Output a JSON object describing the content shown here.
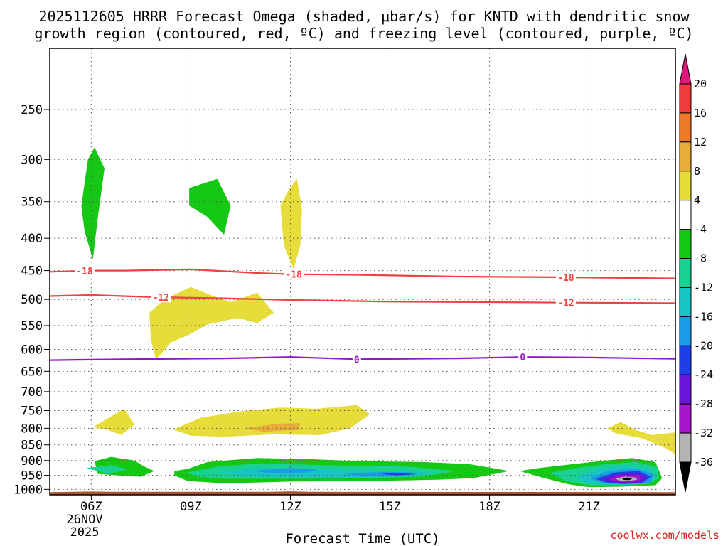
{
  "chart_data": {
    "type": "time-height contour",
    "title_line1": "2025112605 HRRR Forecast Omega (shaded, μbar/s) for KNTD with dendritic snow",
    "title_line2": "growth region (contoured, red, ºC) and freezing level (contoured, purple, ºC)",
    "xlabel": "Forecast Time (UTC)",
    "credit": "coolwx.com/models",
    "date_label_line1": "26NOV",
    "date_label_line2": "2025",
    "xlim_hours": [
      4.75,
      23.6
    ],
    "x_ticks": [
      {
        "hour": 6,
        "label": "06Z"
      },
      {
        "hour": 9,
        "label": "09Z"
      },
      {
        "hour": 12,
        "label": "12Z"
      },
      {
        "hour": 15,
        "label": "15Z"
      },
      {
        "hour": 18,
        "label": "18Z"
      },
      {
        "hour": 21,
        "label": "21Z"
      }
    ],
    "y_axis": {
      "scale": "log pressure (inverted)",
      "ylim_hPa": [
        1020,
        200
      ],
      "ticks": [
        250,
        300,
        350,
        400,
        450,
        500,
        550,
        600,
        650,
        700,
        750,
        800,
        850,
        900,
        950,
        1000
      ]
    },
    "colorbar": {
      "labels": [
        "20",
        "16",
        "12",
        "8",
        "4",
        "-4",
        "-8",
        "-12",
        "-16",
        "-20",
        "-24",
        "-28",
        "-32",
        "-36"
      ],
      "bins": [
        {
          "from": 20,
          "to": 99,
          "color": "#e0147a"
        },
        {
          "from": 16,
          "to": 20,
          "color": "#ee3c3c"
        },
        {
          "from": 12,
          "to": 16,
          "color": "#ec7a28"
        },
        {
          "from": 8,
          "to": 12,
          "color": "#e8ad38"
        },
        {
          "from": 4,
          "to": 8,
          "color": "#e6dc3a"
        },
        {
          "from": -4,
          "to": 4,
          "color": "#ffffff"
        },
        {
          "from": -8,
          "to": -4,
          "color": "#14c814"
        },
        {
          "from": -12,
          "to": -8,
          "color": "#19d192"
        },
        {
          "from": -16,
          "to": -12,
          "color": "#18c4c4"
        },
        {
          "from": -20,
          "to": -16,
          "color": "#1c9be8"
        },
        {
          "from": -24,
          "to": -20,
          "color": "#1e3ee8"
        },
        {
          "from": -28,
          "to": -24,
          "color": "#6a14d8"
        },
        {
          "from": -32,
          "to": -28,
          "color": "#a814c8"
        },
        {
          "from": -36,
          "to": -32,
          "color": "#b4b4b4"
        },
        {
          "from": -99,
          "to": -36,
          "color": "#000000"
        }
      ]
    },
    "isotherms": [
      {
        "label": "-18",
        "color": "#ef4141",
        "points": [
          [
            4.75,
            452
          ],
          [
            6,
            450
          ],
          [
            7,
            450
          ],
          [
            9,
            448
          ],
          [
            11,
            454
          ],
          [
            12,
            456
          ],
          [
            14,
            457
          ],
          [
            17,
            460
          ],
          [
            20,
            461
          ],
          [
            23.6,
            463
          ]
        ],
        "label_hours": [
          5.8,
          12.1,
          20.3
        ]
      },
      {
        "label": "-12",
        "color": "#ef4141",
        "points": [
          [
            4.75,
            494
          ],
          [
            6,
            492
          ],
          [
            8,
            496
          ],
          [
            10,
            498
          ],
          [
            12,
            501
          ],
          [
            15,
            504
          ],
          [
            18,
            505
          ],
          [
            21,
            506
          ],
          [
            23.6,
            507
          ]
        ],
        "label_hours": [
          8.1,
          20.3
        ]
      },
      {
        "label": "0",
        "color": "#9414c8",
        "points": [
          [
            4.75,
            624
          ],
          [
            7,
            622
          ],
          [
            10,
            620
          ],
          [
            12,
            617
          ],
          [
            14,
            622
          ],
          [
            17,
            620
          ],
          [
            19,
            617
          ],
          [
            21,
            618
          ],
          [
            23.6,
            621
          ]
        ],
        "label_hours": [
          14.0,
          19.0
        ]
      }
    ],
    "omega_regions": [
      {
        "value_band": "-8 to -4",
        "color": "#14c814",
        "points": [
          [
            5.7,
            355
          ],
          [
            5.9,
            300
          ],
          [
            6.1,
            287
          ],
          [
            6.4,
            310
          ],
          [
            6.2,
            370
          ],
          [
            6.05,
            432
          ],
          [
            5.8,
            390
          ]
        ]
      },
      {
        "value_band": "-8 to -4",
        "color": "#14c814",
        "points": [
          [
            8.95,
            333
          ],
          [
            9.8,
            322
          ],
          [
            10.2,
            355
          ],
          [
            10.0,
            395
          ],
          [
            9.5,
            370
          ],
          [
            8.95,
            355
          ]
        ]
      },
      {
        "value_band": "4 to 8",
        "color": "#e6dc3a",
        "points": [
          [
            11.7,
            355
          ],
          [
            11.95,
            335
          ],
          [
            12.2,
            322
          ],
          [
            12.35,
            360
          ],
          [
            12.3,
            410
          ],
          [
            12.1,
            448
          ],
          [
            11.8,
            410
          ]
        ]
      },
      {
        "value_band": "4 to 8",
        "color": "#e6dc3a",
        "points": [
          [
            7.75,
            525
          ],
          [
            8.2,
            500
          ],
          [
            9.0,
            478
          ],
          [
            9.6,
            492
          ],
          [
            10.2,
            505
          ],
          [
            11.0,
            488
          ],
          [
            11.5,
            525
          ],
          [
            11.0,
            545
          ],
          [
            10.4,
            535
          ],
          [
            9.5,
            548
          ],
          [
            8.9,
            570
          ],
          [
            8.4,
            585
          ],
          [
            7.95,
            623
          ],
          [
            7.8,
            580
          ]
        ]
      },
      {
        "value_band": "4 to 8",
        "color": "#e6dc3a",
        "points": [
          [
            6.05,
            797
          ],
          [
            6.8,
            755
          ],
          [
            7.0,
            745
          ],
          [
            7.3,
            790
          ],
          [
            6.9,
            820
          ],
          [
            6.5,
            805
          ]
        ]
      },
      {
        "value_band": "4 to 8",
        "color": "#e6dc3a",
        "points": [
          [
            8.55,
            800
          ],
          [
            9.3,
            770
          ],
          [
            10.5,
            752
          ],
          [
            11.7,
            742
          ],
          [
            12.8,
            745
          ],
          [
            14.0,
            735
          ],
          [
            14.4,
            760
          ],
          [
            13.8,
            800
          ],
          [
            12.9,
            820
          ],
          [
            11.5,
            818
          ],
          [
            10.0,
            825
          ],
          [
            9.0,
            822
          ],
          [
            8.5,
            805
          ]
        ]
      },
      {
        "value_band": "8 to 12",
        "color": "#e8ad38",
        "points": [
          [
            10.6,
            800
          ],
          [
            11.6,
            787
          ],
          [
            12.3,
            785
          ],
          [
            12.25,
            805
          ],
          [
            11.2,
            810
          ]
        ]
      },
      {
        "value_band": "4 to 8",
        "color": "#e6dc3a",
        "points": [
          [
            21.55,
            800
          ],
          [
            21.95,
            782
          ],
          [
            22.4,
            805
          ],
          [
            22.9,
            820
          ],
          [
            23.6,
            812
          ],
          [
            23.6,
            880
          ],
          [
            23.3,
            860
          ],
          [
            22.6,
            830
          ],
          [
            21.8,
            815
          ]
        ]
      },
      {
        "value_band": "-8 to -4",
        "color": "#14c814",
        "points": [
          [
            6.1,
            902
          ],
          [
            6.6,
            888
          ],
          [
            7.3,
            900
          ],
          [
            7.6,
            920
          ],
          [
            7.9,
            935
          ],
          [
            7.5,
            955
          ],
          [
            6.8,
            950
          ],
          [
            6.2,
            945
          ]
        ]
      },
      {
        "value_band": "-8 to -4",
        "color": "#14c814",
        "points": [
          [
            8.5,
            935
          ],
          [
            8.9,
            928
          ],
          [
            9.5,
            905
          ],
          [
            11.0,
            892
          ],
          [
            12.5,
            895
          ],
          [
            14.0,
            902
          ],
          [
            16.0,
            905
          ],
          [
            17.4,
            912
          ],
          [
            18.6,
            935
          ],
          [
            17.5,
            960
          ],
          [
            16.5,
            965
          ],
          [
            14.5,
            970
          ],
          [
            12.0,
            972
          ],
          [
            10.0,
            978
          ],
          [
            8.9,
            970
          ],
          [
            8.5,
            950
          ]
        ]
      },
      {
        "value_band": "-12 to -8",
        "color": "#19d192",
        "points": [
          [
            5.85,
            925
          ],
          [
            6.6,
            915
          ],
          [
            7.1,
            930
          ],
          [
            6.5,
            945
          ]
        ]
      },
      {
        "value_band": "-12 to -8",
        "color": "#19d192",
        "points": [
          [
            8.9,
            940
          ],
          [
            9.8,
            920
          ],
          [
            11.0,
            910
          ],
          [
            13.0,
            915
          ],
          [
            15.5,
            920
          ],
          [
            17.0,
            935
          ],
          [
            16.0,
            955
          ],
          [
            14.0,
            960
          ],
          [
            12.0,
            962
          ],
          [
            10.0,
            962
          ],
          [
            9.2,
            955
          ]
        ]
      },
      {
        "value_band": "-16 to -12",
        "color": "#18c4c4",
        "points": [
          [
            9.8,
            940
          ],
          [
            11.0,
            925
          ],
          [
            13.0,
            930
          ],
          [
            15.0,
            935
          ],
          [
            16.5,
            942
          ],
          [
            15.0,
            955
          ],
          [
            13.0,
            958
          ],
          [
            11.0,
            955
          ]
        ]
      },
      {
        "value_band": "-20 to -16",
        "color": "#1c9be8",
        "points": [
          [
            10.8,
            935
          ],
          [
            12.0,
            925
          ],
          [
            12.8,
            930
          ],
          [
            12.5,
            940
          ],
          [
            11.5,
            943
          ]
        ]
      },
      {
        "value_band": "-20 to -16",
        "color": "#1c9be8",
        "points": [
          [
            13.6,
            945
          ],
          [
            14.8,
            938
          ],
          [
            16.0,
            942
          ],
          [
            15.2,
            952
          ],
          [
            14.2,
            952
          ]
        ]
      },
      {
        "value_band": "-24 to -20",
        "color": "#1e3ee8",
        "points": [
          [
            14.7,
            945
          ],
          [
            15.3,
            941
          ],
          [
            15.8,
            946
          ],
          [
            15.2,
            950
          ]
        ]
      },
      {
        "value_band": "-8 to -4",
        "color": "#14c814",
        "points": [
          [
            18.9,
            935
          ],
          [
            19.5,
            925
          ],
          [
            20.5,
            912
          ],
          [
            21.5,
            900
          ],
          [
            22.3,
            892
          ],
          [
            23.0,
            905
          ],
          [
            23.2,
            960
          ],
          [
            23.0,
            985
          ],
          [
            22.0,
            990
          ],
          [
            21.0,
            992
          ],
          [
            20.4,
            982
          ],
          [
            19.5,
            955
          ]
        ]
      },
      {
        "value_band": "-12 to -8",
        "color": "#19d192",
        "points": [
          [
            19.8,
            942
          ],
          [
            20.6,
            925
          ],
          [
            21.5,
            912
          ],
          [
            22.4,
            905
          ],
          [
            23.05,
            920
          ],
          [
            23.1,
            960
          ],
          [
            22.8,
            980
          ],
          [
            22.0,
            985
          ],
          [
            21.0,
            985
          ],
          [
            20.3,
            970
          ]
        ]
      },
      {
        "value_band": "-16 to -12",
        "color": "#18c4c4",
        "points": [
          [
            20.6,
            960
          ],
          [
            21.2,
            930
          ],
          [
            22.0,
            918
          ],
          [
            22.8,
            928
          ],
          [
            23.05,
            960
          ],
          [
            22.5,
            982
          ],
          [
            21.6,
            982
          ],
          [
            20.9,
            975
          ]
        ]
      },
      {
        "value_band": "-20 to -16",
        "color": "#1c9be8",
        "points": [
          [
            21.0,
            960
          ],
          [
            21.6,
            935
          ],
          [
            22.4,
            927
          ],
          [
            22.95,
            945
          ],
          [
            22.85,
            975
          ],
          [
            22.2,
            982
          ],
          [
            21.4,
            978
          ]
        ]
      },
      {
        "value_band": "-24 to -20",
        "color": "#1e3ee8",
        "points": [
          [
            21.2,
            962
          ],
          [
            21.8,
            940
          ],
          [
            22.5,
            935
          ],
          [
            22.85,
            955
          ],
          [
            22.6,
            977
          ],
          [
            22.0,
            980
          ],
          [
            21.5,
            975
          ]
        ]
      },
      {
        "value_band": "-28 to -24",
        "color": "#6a14d8",
        "points": [
          [
            21.4,
            962
          ],
          [
            21.9,
            945
          ],
          [
            22.5,
            942
          ],
          [
            22.75,
            960
          ],
          [
            22.5,
            975
          ],
          [
            22.0,
            977
          ],
          [
            21.6,
            972
          ]
        ]
      },
      {
        "value_band": "-32 to -28",
        "color": "#a814c8",
        "points": [
          [
            21.6,
            962
          ],
          [
            22.0,
            950
          ],
          [
            22.45,
            950
          ],
          [
            22.6,
            962
          ],
          [
            22.4,
            972
          ],
          [
            22.0,
            973
          ],
          [
            21.75,
            970
          ]
        ]
      },
      {
        "value_band": "-36 to -32",
        "color": "#b4b4b4",
        "points": [
          [
            21.8,
            962
          ],
          [
            22.1,
            954
          ],
          [
            22.4,
            958
          ],
          [
            22.45,
            965
          ],
          [
            22.2,
            970
          ],
          [
            21.9,
            968
          ]
        ]
      },
      {
        "value_band": "< -36",
        "color": "#000000",
        "points": [
          [
            22.0,
            962
          ],
          [
            22.15,
            957
          ],
          [
            22.3,
            962
          ],
          [
            22.2,
            967
          ],
          [
            22.05,
            966
          ]
        ]
      }
    ],
    "terrain": {
      "color": "#a8552b",
      "points": [
        [
          4.75,
          1010
        ],
        [
          6.0,
          1008
        ],
        [
          6.6,
          1009
        ],
        [
          11.4,
          1009
        ],
        [
          12.0,
          1007
        ],
        [
          12.6,
          1009
        ],
        [
          23.6,
          1010
        ]
      ]
    }
  }
}
